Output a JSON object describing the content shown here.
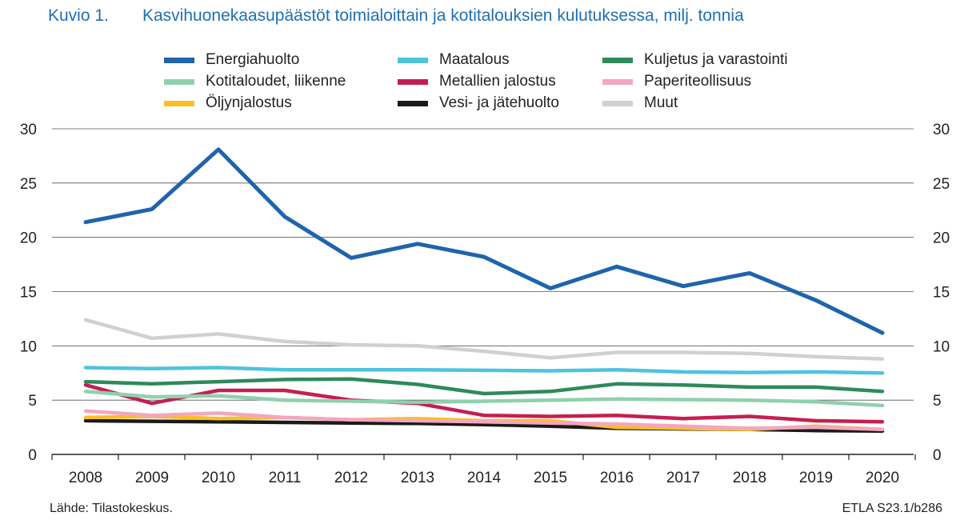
{
  "header": {
    "figure_label": "Kuvio 1.",
    "title": "Kasvihuonekaasupäästöt toimialoittain ja kotitalouksien kulutuksessa, milj. tonnia"
  },
  "footer": {
    "source": "Lähde: Tilastokeskus.",
    "code": "ETLA S23.1/b286"
  },
  "chart_data": {
    "type": "line",
    "x": [
      "2008",
      "2009",
      "2010",
      "2011",
      "2012",
      "2013",
      "2014",
      "2015",
      "2016",
      "2017",
      "2018",
      "2019",
      "2020"
    ],
    "ylim": [
      0,
      30
    ],
    "yticks": [
      0,
      5,
      10,
      15,
      20,
      25,
      30
    ],
    "grid": true,
    "legend_position": "top",
    "series": [
      {
        "name": "Energiahuolto",
        "color": "#1f64ac",
        "values": [
          21.4,
          22.6,
          28.1,
          21.9,
          18.1,
          19.4,
          18.2,
          15.3,
          17.3,
          15.5,
          16.7,
          14.2,
          11.2
        ]
      },
      {
        "name": "Maatalous",
        "color": "#4dc3e0",
        "values": [
          8.0,
          7.9,
          8.0,
          7.8,
          7.8,
          7.8,
          7.75,
          7.7,
          7.8,
          7.6,
          7.55,
          7.6,
          7.5
        ]
      },
      {
        "name": "Kuljetus ja varastointi",
        "color": "#2e8a5a",
        "values": [
          6.7,
          6.5,
          6.7,
          6.9,
          6.95,
          6.45,
          5.6,
          5.8,
          6.5,
          6.4,
          6.2,
          6.2,
          5.8
        ]
      },
      {
        "name": "Kotitaloudet, liikenne",
        "color": "#8fd1ad",
        "values": [
          5.8,
          5.3,
          5.4,
          5.0,
          4.9,
          4.8,
          4.9,
          5.0,
          5.1,
          5.05,
          5.0,
          4.85,
          4.5
        ]
      },
      {
        "name": "Metallien jalostus",
        "color": "#c41f52",
        "values": [
          6.4,
          4.7,
          5.9,
          5.9,
          5.0,
          4.7,
          3.6,
          3.5,
          3.6,
          3.3,
          3.5,
          3.1,
          3.0
        ]
      },
      {
        "name": "Paperiteollisuus",
        "color": "#f3a6c1",
        "values": [
          4.0,
          3.6,
          3.8,
          3.4,
          3.2,
          3.1,
          3.0,
          2.9,
          2.8,
          2.6,
          2.4,
          2.5,
          2.3
        ]
      },
      {
        "name": "Öljynjalostus",
        "color": "#fbbf24",
        "values": [
          3.4,
          3.5,
          3.3,
          3.4,
          3.2,
          3.3,
          3.1,
          3.1,
          2.5,
          2.4,
          2.3,
          2.6,
          2.3
        ]
      },
      {
        "name": "Vesi- ja jätehuolto",
        "color": "#1a1a1a",
        "values": [
          3.1,
          3.05,
          3.0,
          2.95,
          2.9,
          2.85,
          2.75,
          2.6,
          2.4,
          2.35,
          2.3,
          2.2,
          2.15
        ]
      },
      {
        "name": "Muut",
        "color": "#d0d0d0",
        "values": [
          12.4,
          10.7,
          11.1,
          10.4,
          10.1,
          10.0,
          9.5,
          8.9,
          9.4,
          9.4,
          9.3,
          9.0,
          8.8
        ]
      }
    ]
  }
}
